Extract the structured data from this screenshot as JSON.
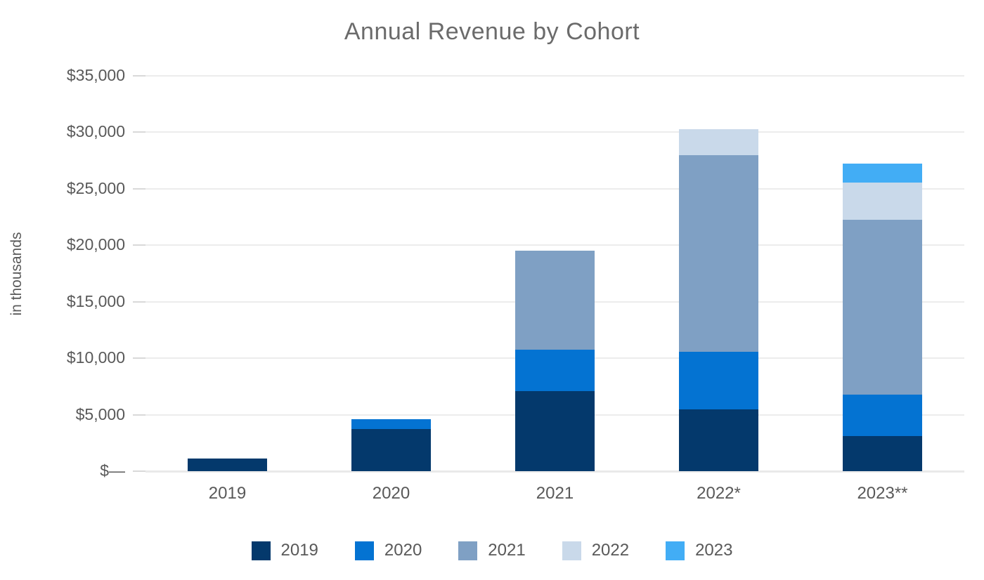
{
  "chart_data": {
    "type": "bar",
    "stacked": true,
    "title": "Annual Revenue by Cohort",
    "ylabel": "in thousands",
    "xlabel": "",
    "categories": [
      "2019",
      "2020",
      "2021",
      "2022*",
      "2023**"
    ],
    "series": [
      {
        "name": "2019",
        "color": "#04396C",
        "values": [
          1100,
          3700,
          7100,
          5450,
          3100
        ]
      },
      {
        "name": "2020",
        "color": "#0473D2",
        "values": [
          0,
          900,
          3650,
          5100,
          3700
        ]
      },
      {
        "name": "2021",
        "color": "#7FA0C4",
        "values": [
          0,
          0,
          8750,
          17400,
          15450
        ]
      },
      {
        "name": "2022",
        "color": "#C9D9EA",
        "values": [
          0,
          0,
          0,
          2350,
          3300
        ]
      },
      {
        "name": "2023",
        "color": "#42ADF5",
        "values": [
          0,
          0,
          0,
          0,
          1650
        ]
      }
    ],
    "stack_totals": [
      1100,
      4600,
      19500,
      30300,
      27200
    ],
    "ylim": [
      0,
      35000
    ],
    "y_ticks": [
      {
        "value": 0,
        "label": "$—"
      },
      {
        "value": 5000,
        "label": "$5,000"
      },
      {
        "value": 10000,
        "label": "$10,000"
      },
      {
        "value": 15000,
        "label": "$15,000"
      },
      {
        "value": 20000,
        "label": "$20,000"
      },
      {
        "value": 25000,
        "label": "$25,000"
      },
      {
        "value": 30000,
        "label": "$30,000"
      },
      {
        "value": 35000,
        "label": "$35,000"
      }
    ],
    "grid": true,
    "legend_position": "bottom"
  }
}
